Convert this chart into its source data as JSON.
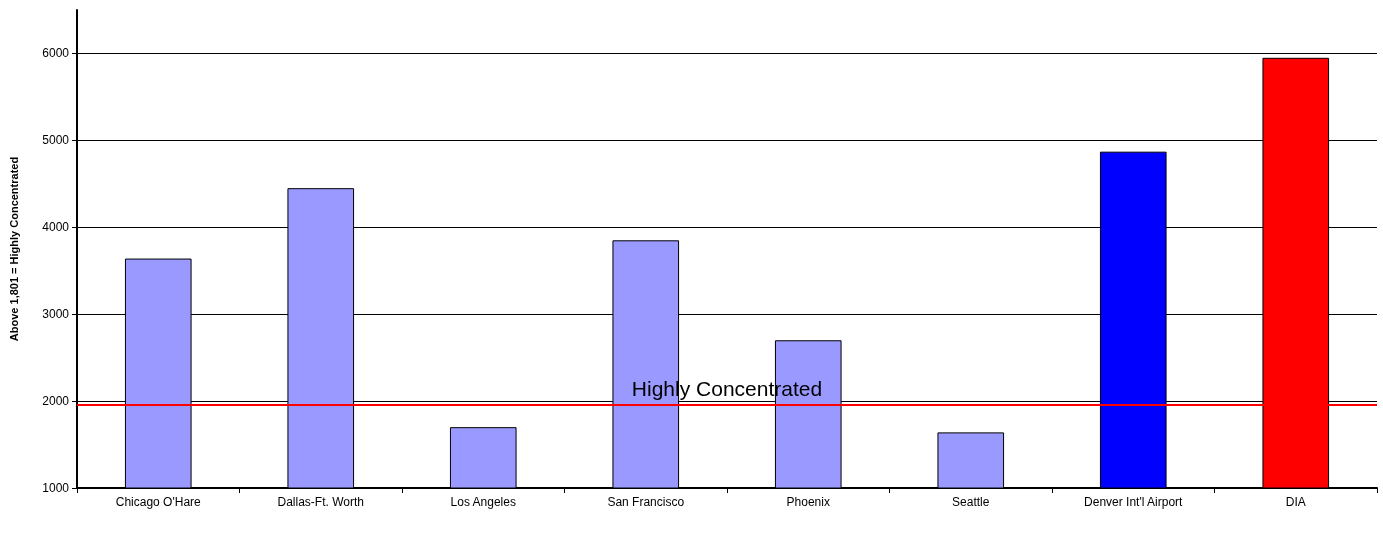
{
  "chart_data": {
    "type": "bar",
    "ylabel": "Above 1,801 = Highly Concentrated",
    "categories": [
      "Chicago O'Hare",
      "Dallas-Ft. Worth",
      "Los Angeles",
      "San Francisco",
      "Phoenix",
      "Seattle",
      "Denver Int'l Airport",
      "DIA"
    ],
    "values": [
      3640,
      4450,
      1700,
      3850,
      2700,
      1640,
      4870,
      5950
    ],
    "colors": [
      "#9999ff",
      "#9999ff",
      "#9999ff",
      "#9999ff",
      "#9999ff",
      "#9999ff",
      "#0000ff",
      "#ff0000"
    ],
    "ylim": [
      1000,
      6500
    ],
    "yticks": [
      1000,
      2000,
      3000,
      4000,
      5000,
      6000
    ],
    "grid": "y",
    "ref_lines": [
      {
        "axis": "y",
        "value": 1960,
        "label": "Highly Concentrated",
        "color": "#ff0000"
      }
    ]
  }
}
